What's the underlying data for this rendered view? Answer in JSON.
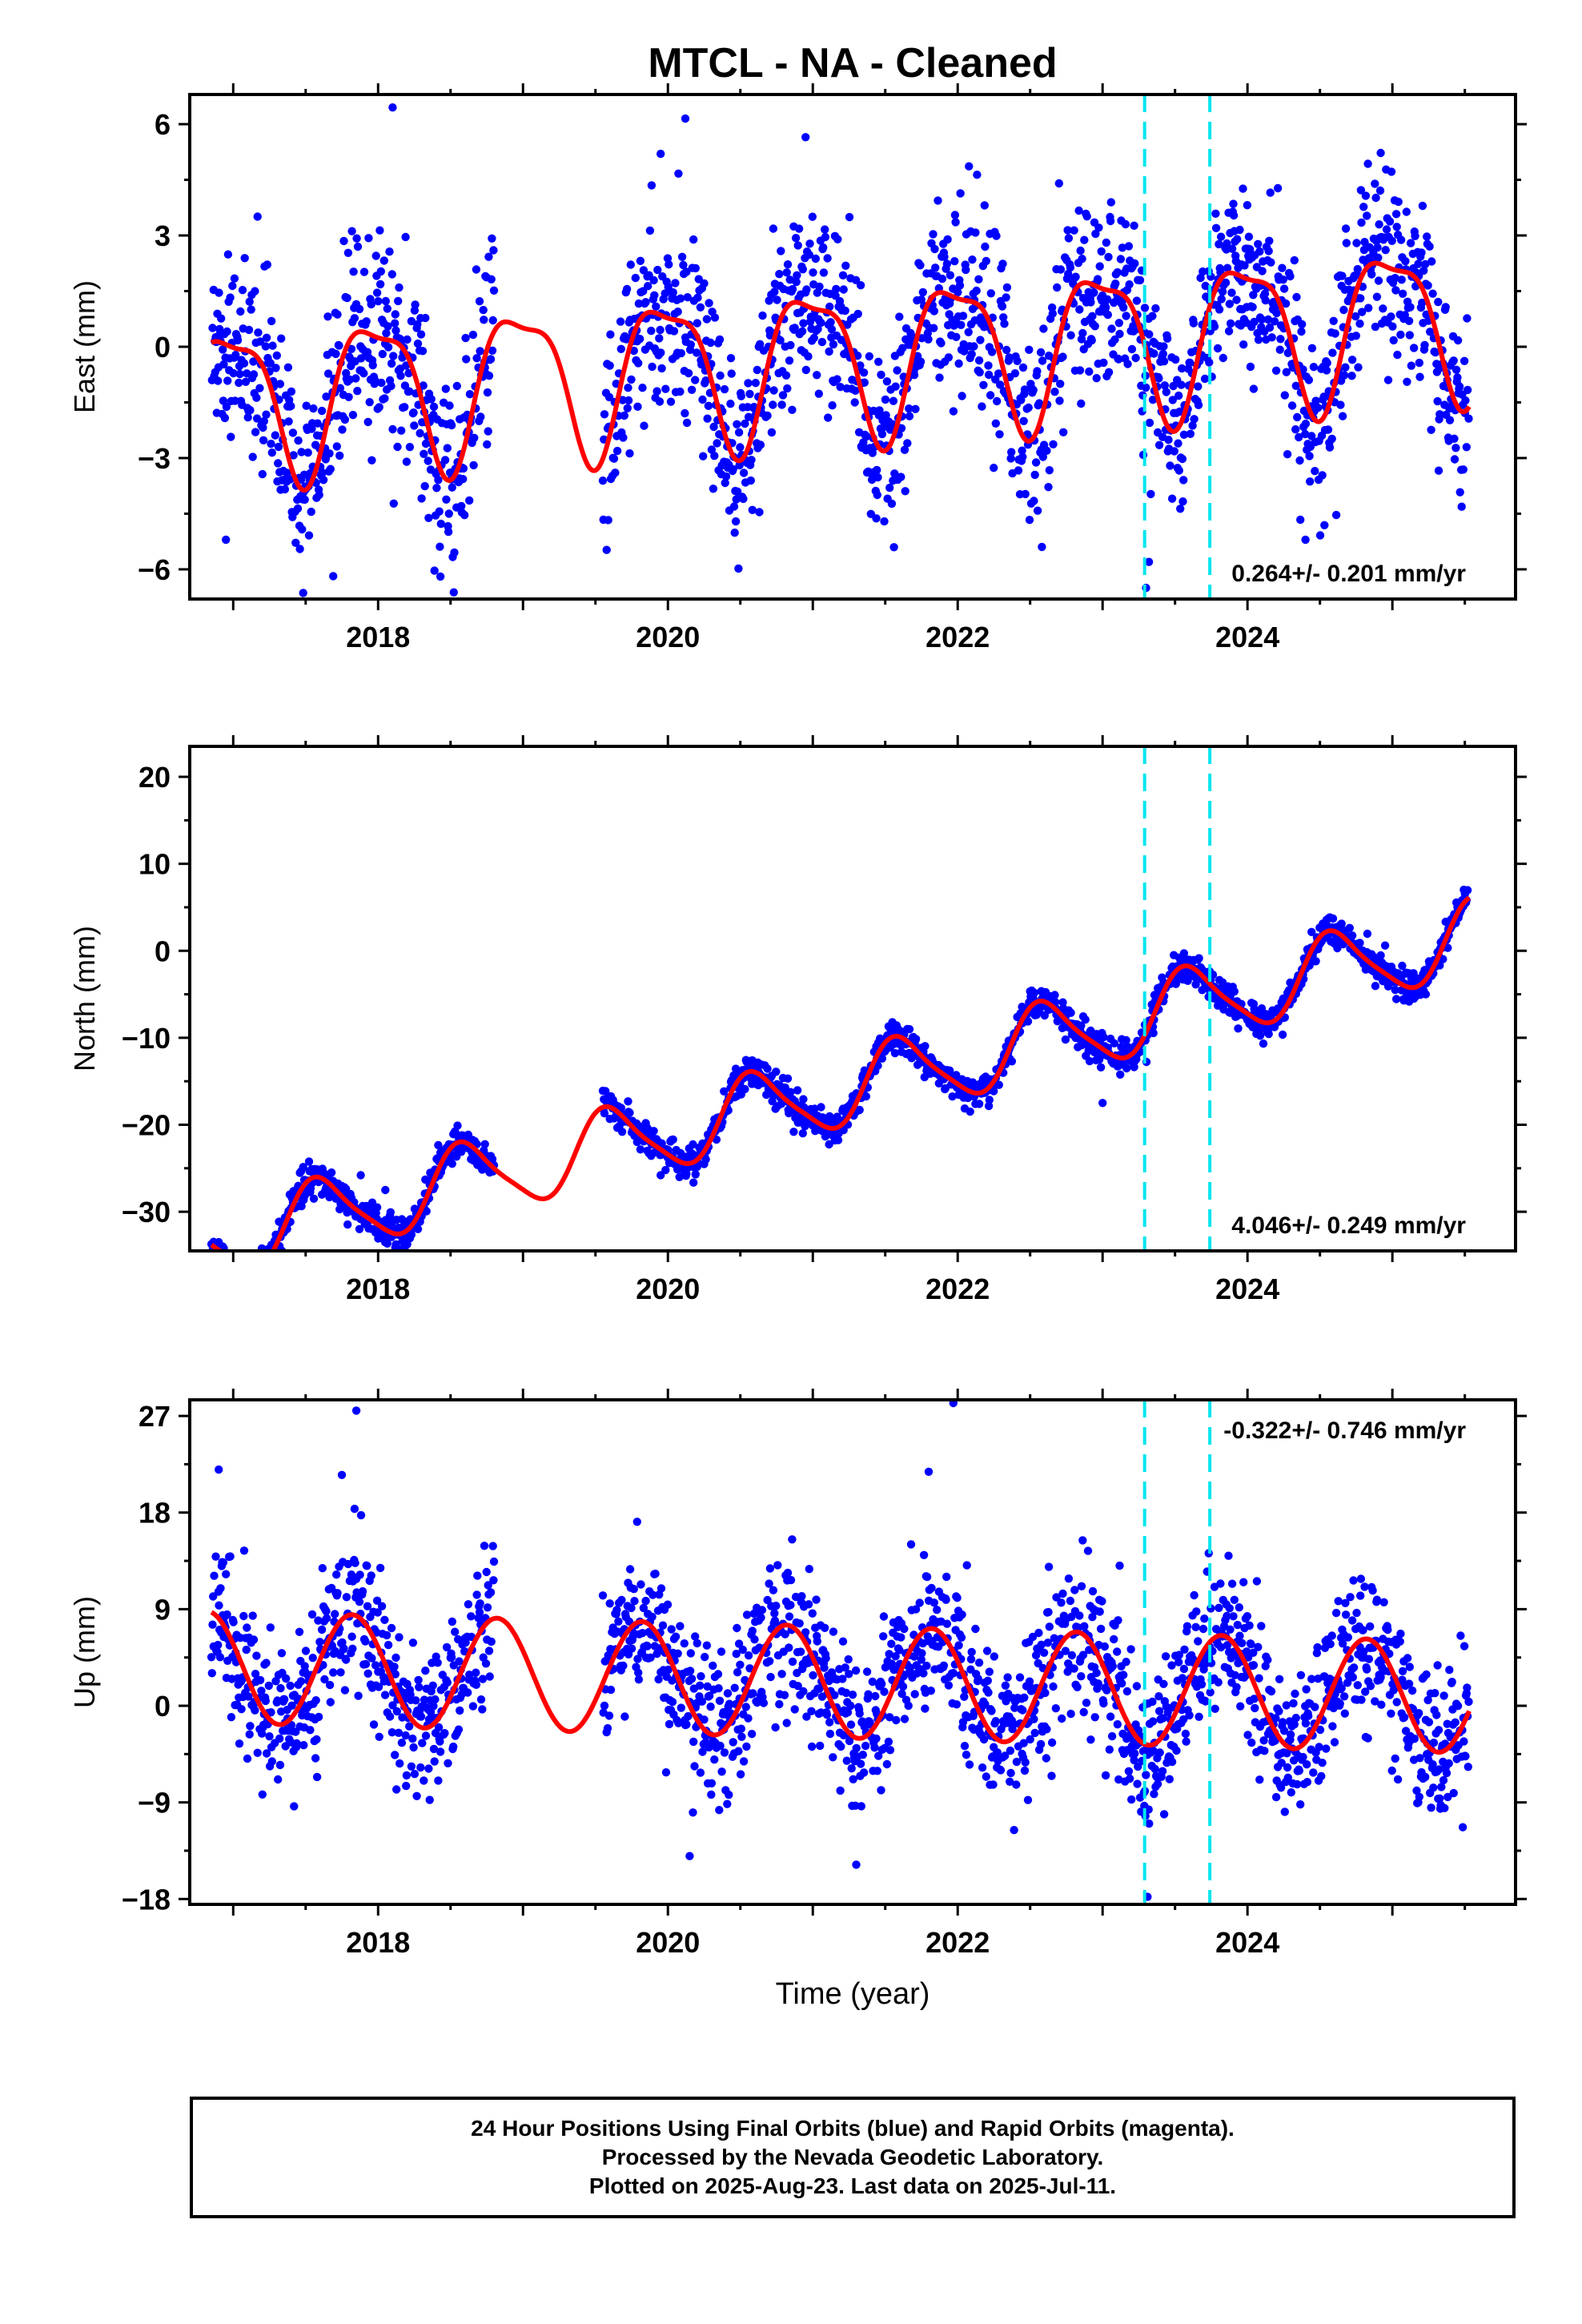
{
  "title": "MTCL  - NA - Cleaned",
  "colors": {
    "points": "#0000ff",
    "model": "#ff0000",
    "event_lines": "#00e5ee",
    "frame": "#000000"
  },
  "chart_data": [
    {
      "type": "scatter",
      "component": "east",
      "ylabel": "East (mm)",
      "xlabel": "",
      "xlim": [
        2016.7,
        2025.85
      ],
      "ylim": [
        -6.8,
        6.8
      ],
      "xticks": [
        2018,
        2020,
        2022,
        2024
      ],
      "yticks": [
        -6,
        -3,
        0,
        3,
        6
      ],
      "yticklabels": [
        "−6",
        "−3",
        "0",
        "3",
        "6"
      ],
      "rate_text": "0.264+/- 0.201 mm/yr",
      "rate_position": "bottom-right",
      "event_lines_x": [
        2023.29,
        2023.74
      ],
      "data_gap": [
        2018.8,
        2019.55
      ],
      "data_range": [
        2016.85,
        2025.53
      ],
      "model": {
        "rate": 0.264,
        "annual_amp": 2.0,
        "annual_phase_peak": 2017.98,
        "semiannual_amp": 0.6,
        "semiannual_phase_peak": 2017.75,
        "offset": -0.3
      },
      "scatter_sigma": 1.25,
      "outliers": [
        [
          2018.1,
          6.45
        ],
        [
          2020.12,
          6.15
        ],
        [
          2020.95,
          5.65
        ],
        [
          2019.95,
          5.2
        ],
        [
          2016.95,
          -5.2
        ],
        [
          2023.3,
          -6.5
        ],
        [
          2024.4,
          -5.2
        ],
        [
          2023.32,
          -5.8
        ]
      ]
    },
    {
      "type": "scatter",
      "component": "north",
      "ylabel": "North (mm)",
      "xlabel": "",
      "xlim": [
        2016.7,
        2025.85
      ],
      "ylim": [
        -34.5,
        23.5
      ],
      "xticks": [
        2018,
        2020,
        2022,
        2024
      ],
      "yticks": [
        -30,
        -20,
        -10,
        0,
        10,
        20
      ],
      "yticklabels": [
        "−30",
        "−20",
        "−10",
        "0",
        "10",
        "20"
      ],
      "rate_text": "4.046+/- 0.249 mm/yr",
      "rate_position": "bottom-right",
      "event_lines_x": [
        2023.29,
        2023.74
      ],
      "data_gap": [
        2018.8,
        2019.55
      ],
      "data_range": [
        2016.85,
        2025.53
      ],
      "model": {
        "rate": 4.046,
        "annual_amp": 4.2,
        "annual_phase_peak": 2017.6,
        "semiannual_amp": 0.8,
        "semiannual_phase_peak": 2017.5,
        "offset": -16.0
      },
      "scatter_sigma": 0.9,
      "outliers": [
        [
          2016.9,
          -33.5
        ],
        [
          2017.9,
          -31.0
        ],
        [
          2019.95,
          -25.8
        ],
        [
          2023.0,
          -17.5
        ],
        [
          2017.88,
          -25.8
        ],
        [
          2018.05,
          -27.5
        ],
        [
          2024.95,
          0.6
        ],
        [
          2023.42,
          -5.8
        ]
      ]
    },
    {
      "type": "scatter",
      "component": "up",
      "ylabel": "Up (mm)",
      "xlabel": "Time (year)",
      "xlim": [
        2016.7,
        2025.85
      ],
      "ylim": [
        -18.5,
        28.5
      ],
      "xticks": [
        2018,
        2020,
        2022,
        2024
      ],
      "yticks": [
        -18,
        -9,
        0,
        9,
        18,
        27
      ],
      "yticklabels": [
        "−18",
        "−9",
        "0",
        "9",
        "18",
        "27"
      ],
      "rate_text": "-0.322+/- 0.746 mm/yr",
      "rate_position": "top-right",
      "event_lines_x": [
        2023.29,
        2023.74
      ],
      "data_gap": [
        2018.8,
        2019.55
      ],
      "data_range": [
        2016.85,
        2025.53
      ],
      "model": {
        "rate": -0.322,
        "annual_amp": 5.2,
        "annual_phase_peak": 2016.82,
        "semiannual_amp": 0.0,
        "semiannual_phase_peak": 2016.8,
        "offset": 2.2
      },
      "scatter_sigma": 3.6,
      "outliers": [
        [
          2017.85,
          27.5
        ],
        [
          2021.97,
          28.2
        ],
        [
          2016.9,
          22.0
        ],
        [
          2017.75,
          21.5
        ],
        [
          2021.8,
          21.8
        ],
        [
          2023.31,
          -17.8
        ],
        [
          2021.3,
          -14.8
        ],
        [
          2020.15,
          -14.0
        ]
      ]
    }
  ],
  "footer": {
    "line1": "24 Hour Positions Using Final Orbits (blue) and Rapid Orbits (magenta).",
    "line2": "Processed by the Nevada Geodetic Laboratory.",
    "line3": "Plotted on 2025-Aug-23. Last data on 2025-Jul-11."
  }
}
